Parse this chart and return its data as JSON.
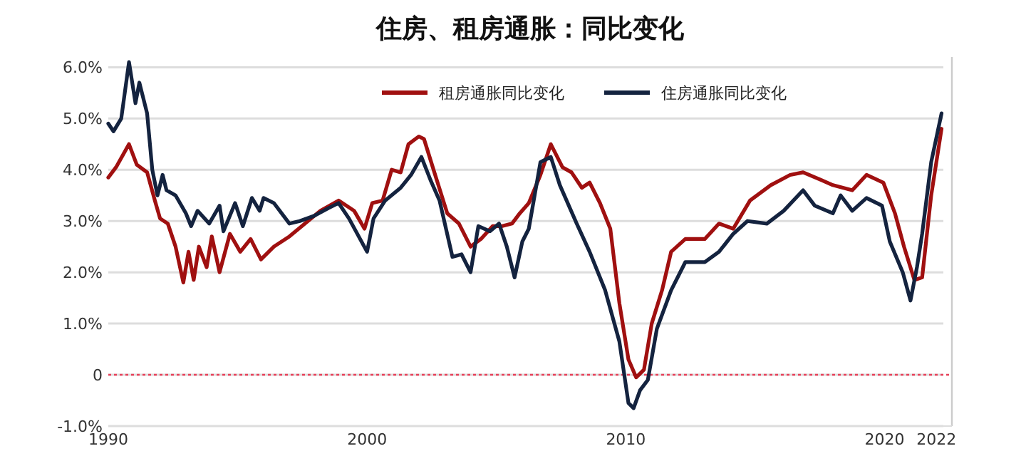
{
  "chart_data": {
    "type": "line",
    "title": "住房、租房通胀：同比变化",
    "xlim": [
      1990,
      2022.6
    ],
    "xticks": [
      1990,
      2000,
      2010,
      2020,
      2022
    ],
    "ylim": [
      -1,
      6.2
    ],
    "yticks": [
      {
        "value": -1,
        "label": "-1.0%"
      },
      0,
      {
        "value": 1,
        "label": "1.0%"
      },
      {
        "value": 2,
        "label": "2.0%"
      },
      {
        "value": 3,
        "label": "3.0%"
      },
      {
        "value": 4,
        "label": "4.0%"
      },
      {
        "value": 5,
        "label": "5.0%"
      },
      {
        "value": 6,
        "label": "6.0%"
      }
    ],
    "grid": "y",
    "legend": "top",
    "marker": "none",
    "line_style": "solid",
    "ref_lines": [
      {
        "axis": "y",
        "value": 0,
        "color": "#e8415a",
        "line_style": "dotted"
      }
    ],
    "series": [
      {
        "name": "租房通胀同比变化",
        "color": "#a01010",
        "x": [
          1990.0,
          1990.3,
          1990.8,
          1991.1,
          1991.5,
          1991.8,
          1992.0,
          1992.3,
          1992.6,
          1992.9,
          1993.1,
          1993.3,
          1993.5,
          1993.8,
          1994.0,
          1994.3,
          1994.7,
          1995.1,
          1995.5,
          1995.9,
          1996.4,
          1997.0,
          1997.6,
          1998.2,
          1998.9,
          1999.5,
          1999.9,
          2000.2,
          2000.6,
          2000.95,
          2001.3,
          2001.6,
          2002.0,
          2002.2,
          2002.6,
          2003.1,
          2003.55,
          2004.0,
          2004.4,
          2004.85,
          2005.2,
          2005.6,
          2005.9,
          2006.25,
          2006.7,
          2007.1,
          2007.55,
          2007.9,
          2008.3,
          2008.6,
          2009.0,
          2009.4,
          2009.75,
          2010.1,
          2010.4,
          2010.7,
          2011.0,
          2011.4,
          2011.75,
          2012.3,
          2013.05,
          2013.6,
          2014.15,
          2014.8,
          2015.6,
          2016.35,
          2016.85,
          2017.55,
          2018.0,
          2018.75,
          2019.3,
          2019.95,
          2020.4,
          2020.75,
          2021.15,
          2021.45,
          2021.8,
          2022.2
        ],
        "values": [
          3.85,
          4.05,
          4.5,
          4.1,
          3.95,
          3.4,
          3.05,
          2.95,
          2.5,
          1.8,
          2.4,
          1.85,
          2.5,
          2.1,
          2.7,
          2.0,
          2.75,
          2.4,
          2.65,
          2.25,
          2.5,
          2.7,
          2.95,
          3.2,
          3.4,
          3.2,
          2.85,
          3.35,
          3.4,
          4.0,
          3.95,
          4.5,
          4.65,
          4.6,
          3.95,
          3.15,
          2.95,
          2.5,
          2.65,
          2.9,
          2.9,
          2.95,
          3.15,
          3.35,
          3.9,
          4.5,
          4.05,
          3.95,
          3.65,
          3.75,
          3.35,
          2.85,
          1.4,
          0.3,
          -0.05,
          0.1,
          1.0,
          1.65,
          2.4,
          2.65,
          2.65,
          2.95,
          2.85,
          3.4,
          3.7,
          3.9,
          3.95,
          3.8,
          3.7,
          3.6,
          3.9,
          3.75,
          3.15,
          2.5,
          1.85,
          1.9,
          3.5,
          4.8
        ]
      },
      {
        "name": "住房通胀同比变化",
        "color": "#14233f",
        "x": [
          1990.0,
          1990.2,
          1990.5,
          1990.8,
          1991.05,
          1991.2,
          1991.5,
          1991.7,
          1991.9,
          1992.1,
          1992.25,
          1992.6,
          1993.0,
          1993.2,
          1993.45,
          1993.9,
          1994.3,
          1994.45,
          1994.9,
          1995.2,
          1995.55,
          1995.85,
          1996.0,
          1996.4,
          1997.0,
          1997.4,
          1997.95,
          1998.5,
          1998.9,
          1999.3,
          2000.0,
          2000.25,
          2000.7,
          2001.3,
          2001.7,
          2002.1,
          2002.45,
          2002.8,
          2003.3,
          2003.65,
          2004.0,
          2004.3,
          2004.75,
          2005.1,
          2005.4,
          2005.7,
          2006.0,
          2006.25,
          2006.7,
          2007.1,
          2007.45,
          2008.1,
          2008.6,
          2009.2,
          2009.75,
          2010.1,
          2010.3,
          2010.55,
          2010.85,
          2011.2,
          2011.75,
          2012.3,
          2013.05,
          2013.6,
          2014.15,
          2014.7,
          2015.45,
          2016.1,
          2016.85,
          2017.3,
          2018.0,
          2018.3,
          2018.75,
          2019.3,
          2019.9,
          2020.2,
          2020.7,
          2021.0,
          2021.25,
          2021.45,
          2021.8,
          2022.2
        ],
        "values": [
          4.9,
          4.75,
          5.0,
          6.1,
          5.3,
          5.7,
          5.1,
          4.0,
          3.5,
          3.9,
          3.6,
          3.5,
          3.15,
          2.9,
          3.2,
          2.95,
          3.3,
          2.8,
          3.35,
          2.9,
          3.45,
          3.2,
          3.45,
          3.35,
          2.95,
          3.0,
          3.1,
          3.25,
          3.35,
          3.05,
          2.4,
          3.05,
          3.4,
          3.65,
          3.9,
          4.25,
          3.8,
          3.4,
          2.3,
          2.35,
          2.0,
          2.9,
          2.8,
          2.95,
          2.5,
          1.9,
          2.6,
          2.85,
          4.15,
          4.25,
          3.7,
          2.95,
          2.4,
          1.65,
          0.65,
          -0.55,
          -0.65,
          -0.3,
          -0.1,
          0.9,
          1.65,
          2.2,
          2.2,
          2.4,
          2.75,
          3.0,
          2.95,
          3.2,
          3.6,
          3.3,
          3.15,
          3.5,
          3.2,
          3.45,
          3.3,
          2.6,
          2.0,
          1.45,
          2.1,
          2.75,
          4.15,
          5.1
        ]
      }
    ]
  }
}
